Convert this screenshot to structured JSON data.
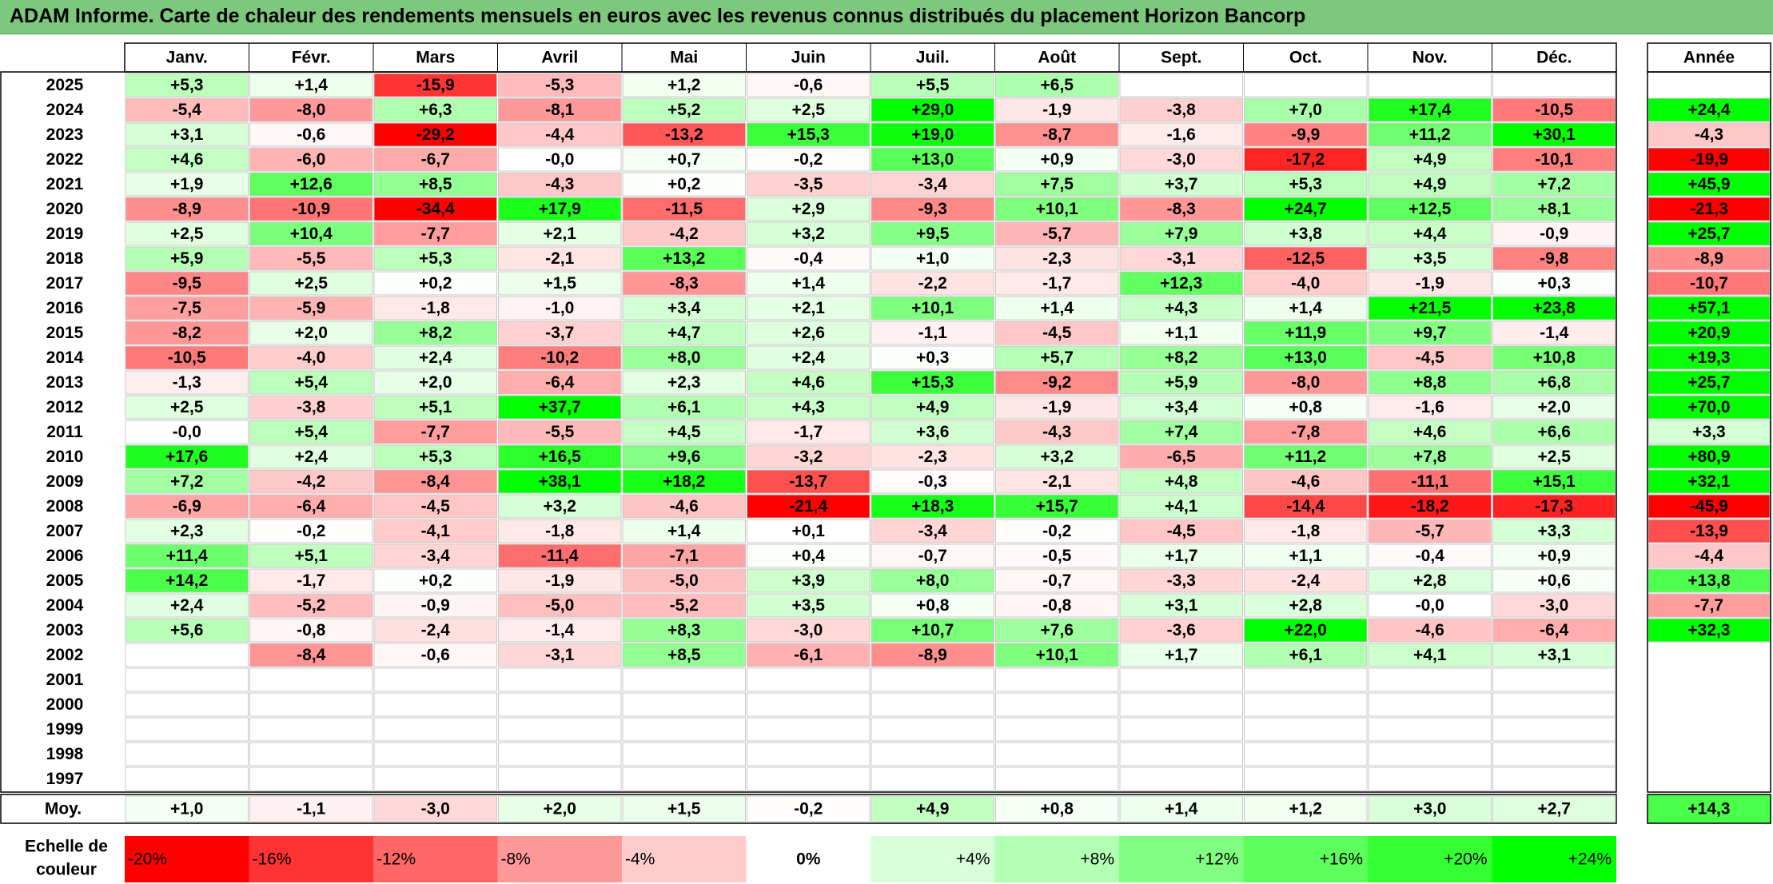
{
  "title": "ADAM Informe. Carte de chaleur des rendements mensuels en euros avec les revenus connus distribués du placement Horizon Bancorp",
  "chart_data": {
    "type": "heatmap",
    "title": "ADAM Informe. Carte de chaleur des rendements mensuels en euros avec les revenus connus distribués du placement Horizon Bancorp",
    "months": [
      "Janv.",
      "Févr.",
      "Mars",
      "Avril",
      "Mai",
      "Juin",
      "Juil.",
      "Août",
      "Sept.",
      "Oct.",
      "Nov.",
      "Déc."
    ],
    "year_header": "Année",
    "avg_label": "Moy.",
    "rows": [
      {
        "year": "2025",
        "values": [
          "+5,3",
          "+1,4",
          "-15,9",
          "-5,3",
          "+1,2",
          "-0,6",
          "+5,5",
          "+6,5",
          "",
          "",
          "",
          ""
        ],
        "annual": ""
      },
      {
        "year": "2024",
        "values": [
          "-5,4",
          "-8,0",
          "+6,3",
          "-8,1",
          "+5,2",
          "+2,5",
          "+29,0",
          "-1,9",
          "-3,8",
          "+7,0",
          "+17,4",
          "-10,5"
        ],
        "annual": "+24,4"
      },
      {
        "year": "2023",
        "values": [
          "+3,1",
          "-0,6",
          "-29,2",
          "-4,4",
          "-13,2",
          "+15,3",
          "+19,0",
          "-8,7",
          "-1,6",
          "-9,9",
          "+11,2",
          "+30,1"
        ],
        "annual": "-4,3"
      },
      {
        "year": "2022",
        "values": [
          "+4,6",
          "-6,0",
          "-6,7",
          "-0,0",
          "+0,7",
          "-0,2",
          "+13,0",
          "+0,9",
          "-3,0",
          "-17,2",
          "+4,9",
          "-10,1"
        ],
        "annual": "-19,9"
      },
      {
        "year": "2021",
        "values": [
          "+1,9",
          "+12,6",
          "+8,5",
          "-4,3",
          "+0,2",
          "-3,5",
          "-3,4",
          "+7,5",
          "+3,7",
          "+5,3",
          "+4,9",
          "+7,2"
        ],
        "annual": "+45,9"
      },
      {
        "year": "2020",
        "values": [
          "-8,9",
          "-10,9",
          "-34,4",
          "+17,9",
          "-11,5",
          "+2,9",
          "-9,3",
          "+10,1",
          "-8,3",
          "+24,7",
          "+12,5",
          "+8,1"
        ],
        "annual": "-21,3"
      },
      {
        "year": "2019",
        "values": [
          "+2,5",
          "+10,4",
          "-7,7",
          "+2,1",
          "-4,2",
          "+3,2",
          "+9,5",
          "-5,7",
          "+7,9",
          "+3,8",
          "+4,4",
          "-0,9"
        ],
        "annual": "+25,7"
      },
      {
        "year": "2018",
        "values": [
          "+5,9",
          "-5,5",
          "+5,3",
          "-2,1",
          "+13,2",
          "-0,4",
          "+1,0",
          "-2,3",
          "-3,1",
          "-12,5",
          "+3,5",
          "-9,8"
        ],
        "annual": "-8,9"
      },
      {
        "year": "2017",
        "values": [
          "-9,5",
          "+2,5",
          "+0,2",
          "+1,5",
          "-8,3",
          "+1,4",
          "-2,2",
          "-1,7",
          "+12,3",
          "-4,0",
          "-1,9",
          "+0,3"
        ],
        "annual": "-10,7"
      },
      {
        "year": "2016",
        "values": [
          "-7,5",
          "-5,9",
          "-1,8",
          "-1,0",
          "+3,4",
          "+2,1",
          "+10,1",
          "+1,4",
          "+4,3",
          "+1,4",
          "+21,5",
          "+23,8"
        ],
        "annual": "+57,1"
      },
      {
        "year": "2015",
        "values": [
          "-8,2",
          "+2,0",
          "+8,2",
          "-3,7",
          "+4,7",
          "+2,6",
          "-1,1",
          "-4,5",
          "+1,1",
          "+11,9",
          "+9,7",
          "-1,4"
        ],
        "annual": "+20,9"
      },
      {
        "year": "2014",
        "values": [
          "-10,5",
          "-4,0",
          "+2,4",
          "-10,2",
          "+8,0",
          "+2,4",
          "+0,3",
          "+5,7",
          "+8,2",
          "+13,0",
          "-4,5",
          "+10,8"
        ],
        "annual": "+19,3"
      },
      {
        "year": "2013",
        "values": [
          "-1,3",
          "+5,4",
          "+2,0",
          "-6,4",
          "+2,3",
          "+4,6",
          "+15,3",
          "-9,2",
          "+5,9",
          "-8,0",
          "+8,8",
          "+6,8"
        ],
        "annual": "+25,7"
      },
      {
        "year": "2012",
        "values": [
          "+2,5",
          "-3,8",
          "+5,1",
          "+37,7",
          "+6,1",
          "+4,3",
          "+4,9",
          "-1,9",
          "+3,4",
          "+0,8",
          "-1,6",
          "+2,0"
        ],
        "annual": "+70,0"
      },
      {
        "year": "2011",
        "values": [
          "-0,0",
          "+5,4",
          "-7,7",
          "-5,5",
          "+4,5",
          "-1,7",
          "+3,6",
          "-4,3",
          "+7,4",
          "-7,8",
          "+4,6",
          "+6,6"
        ],
        "annual": "+3,3"
      },
      {
        "year": "2010",
        "values": [
          "+17,6",
          "+2,4",
          "+5,3",
          "+16,5",
          "+9,6",
          "-3,2",
          "-2,3",
          "+3,2",
          "-6,5",
          "+11,2",
          "+7,8",
          "+2,5"
        ],
        "annual": "+80,9"
      },
      {
        "year": "2009",
        "values": [
          "+7,2",
          "-4,2",
          "-8,4",
          "+38,1",
          "+18,2",
          "-13,7",
          "-0,3",
          "-2,1",
          "+4,8",
          "-4,6",
          "-11,1",
          "+15,1"
        ],
        "annual": "+32,1"
      },
      {
        "year": "2008",
        "values": [
          "-6,9",
          "-6,4",
          "-4,5",
          "+3,2",
          "-4,6",
          "-21,4",
          "+18,3",
          "+15,7",
          "+4,1",
          "-14,4",
          "-18,2",
          "-17,3"
        ],
        "annual": "-45,9"
      },
      {
        "year": "2007",
        "values": [
          "+2,3",
          "-0,2",
          "-4,1",
          "-1,8",
          "+1,4",
          "+0,1",
          "-3,4",
          "-0,2",
          "-4,5",
          "-1,8",
          "-5,7",
          "+3,3"
        ],
        "annual": "-13,9"
      },
      {
        "year": "2006",
        "values": [
          "+11,4",
          "+5,1",
          "-3,4",
          "-11,4",
          "-7,1",
          "+0,4",
          "-0,7",
          "-0,5",
          "+1,7",
          "+1,1",
          "-0,4",
          "+0,9"
        ],
        "annual": "-4,4"
      },
      {
        "year": "2005",
        "values": [
          "+14,2",
          "-1,7",
          "+0,2",
          "-1,9",
          "-5,0",
          "+3,9",
          "+8,0",
          "-0,7",
          "-3,3",
          "-2,4",
          "+2,8",
          "+0,6"
        ],
        "annual": "+13,8"
      },
      {
        "year": "2004",
        "values": [
          "+2,4",
          "-5,2",
          "-0,9",
          "-5,0",
          "-5,2",
          "+3,5",
          "+0,8",
          "-0,8",
          "+3,1",
          "+2,8",
          "-0,0",
          "-3,0"
        ],
        "annual": "-7,7"
      },
      {
        "year": "2003",
        "values": [
          "+5,6",
          "-0,8",
          "-2,4",
          "-1,4",
          "+8,3",
          "-3,0",
          "+10,7",
          "+7,6",
          "-3,6",
          "+22,0",
          "-4,6",
          "-6,4"
        ],
        "annual": "+32,3"
      },
      {
        "year": "2002",
        "values": [
          "",
          "-8,4",
          "-0,6",
          "-3,1",
          "+8,5",
          "-6,1",
          "-8,9",
          "+10,1",
          "+1,7",
          "+6,1",
          "+4,1",
          "+3,1"
        ],
        "annual": ""
      },
      {
        "year": "2001",
        "values": [
          "",
          "",
          "",
          "",
          "",
          "",
          "",
          "",
          "",
          "",
          "",
          ""
        ],
        "annual": ""
      },
      {
        "year": "2000",
        "values": [
          "",
          "",
          "",
          "",
          "",
          "",
          "",
          "",
          "",
          "",
          "",
          ""
        ],
        "annual": ""
      },
      {
        "year": "1999",
        "values": [
          "",
          "",
          "",
          "",
          "",
          "",
          "",
          "",
          "",
          "",
          "",
          ""
        ],
        "annual": ""
      },
      {
        "year": "1998",
        "values": [
          "",
          "",
          "",
          "",
          "",
          "",
          "",
          "",
          "",
          "",
          "",
          ""
        ],
        "annual": ""
      },
      {
        "year": "1997",
        "values": [
          "",
          "",
          "",
          "",
          "",
          "",
          "",
          "",
          "",
          "",
          "",
          ""
        ],
        "annual": ""
      }
    ],
    "average": {
      "values": [
        "+1,0",
        "-1,1",
        "-3,0",
        "+2,0",
        "+1,5",
        "-0,2",
        "+4,9",
        "+0,8",
        "+1,4",
        "+1,2",
        "+3,0",
        "+2,7"
      ],
      "annual": "+14,3"
    },
    "scale": {
      "label_line1": "Echelle de",
      "label_line2": "couleur",
      "items": [
        {
          "label": "-20%",
          "color": "#ff0000"
        },
        {
          "label": "-16%",
          "color": "#ff3333"
        },
        {
          "label": "-12%",
          "color": "#ff6666"
        },
        {
          "label": "-8%",
          "color": "#ff9999"
        },
        {
          "label": "-4%",
          "color": "#ffcccc"
        },
        {
          "label": "0%",
          "color": "#ffffff"
        },
        {
          "label": "+4%",
          "color": "#d9ffd9"
        },
        {
          "label": "+8%",
          "color": "#b3ffb3"
        },
        {
          "label": "+12%",
          "color": "#80ff80"
        },
        {
          "label": "+16%",
          "color": "#5cff5c"
        },
        {
          "label": "+20%",
          "color": "#33ff33"
        },
        {
          "label": "+24%",
          "color": "#00ff00"
        }
      ]
    },
    "colors": {
      "negative_max": "#ff0000",
      "neutral": "#ffffff",
      "positive_max": "#00ff00",
      "title_bar": "#7dc87d"
    }
  }
}
